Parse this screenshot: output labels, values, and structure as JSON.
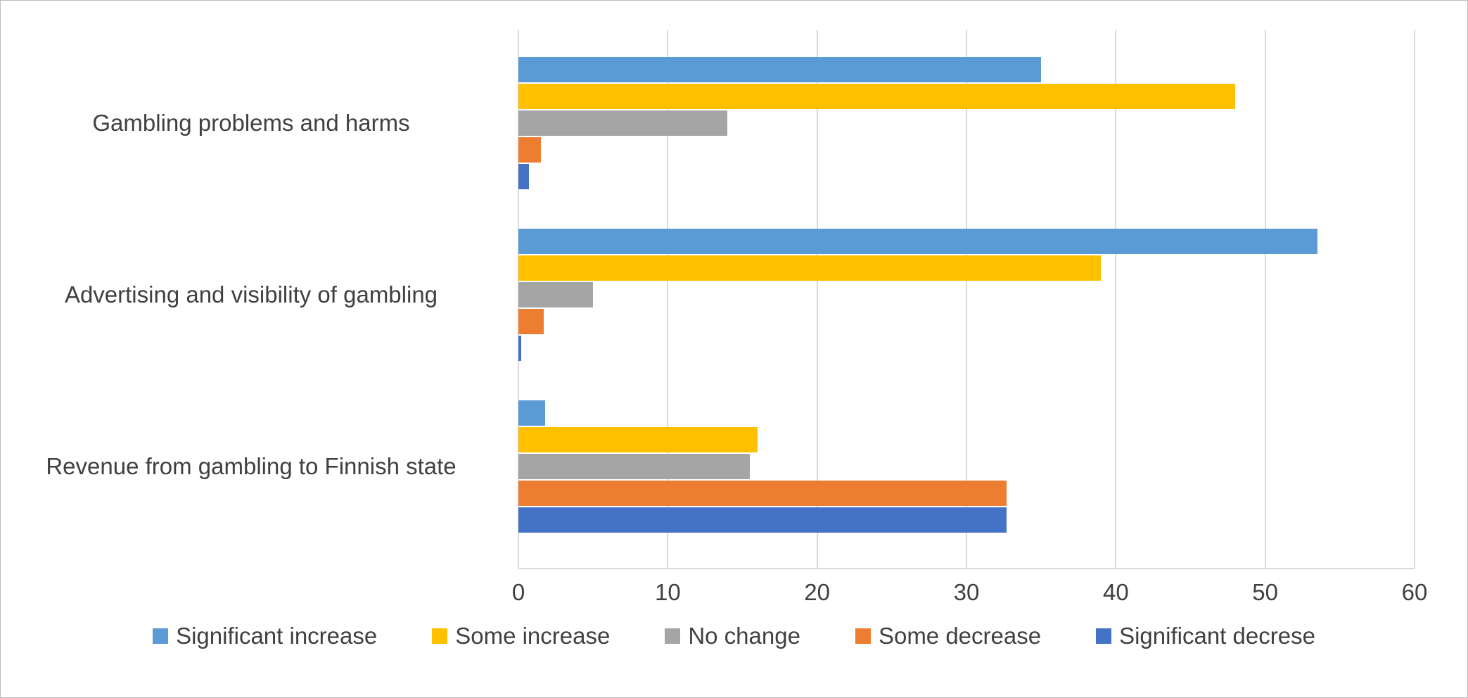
{
  "chart_data": {
    "type": "bar",
    "orientation": "horizontal",
    "title": "",
    "categories": [
      "Gambling problems and harms",
      "Advertising and visibility of gambling",
      "Revenue from gambling to Finnish state"
    ],
    "series": [
      {
        "name": "Significant increase",
        "color": "#5B9BD5",
        "values": [
          35,
          53.5,
          1.8
        ]
      },
      {
        "name": "Some increase",
        "color": "#FFC000",
        "values": [
          48,
          39,
          16
        ]
      },
      {
        "name": "No change",
        "color": "#A5A5A5",
        "values": [
          14,
          5,
          15.5
        ]
      },
      {
        "name": "Some decrease",
        "color": "#ED7D31",
        "values": [
          1.5,
          1.7,
          32.7
        ]
      },
      {
        "name": "Significant decrese",
        "color": "#4472C4",
        "values": [
          0.7,
          0.2,
          32.7
        ]
      }
    ],
    "xlabel": "",
    "ylabel": "",
    "xlim": [
      0,
      60
    ],
    "xticks": [
      0,
      10,
      20,
      30,
      40,
      50,
      60
    ],
    "grid": true,
    "grid_color": "#D9D9D9",
    "axis_line_color": "#D9D9D9",
    "text_color": "#404040",
    "legend_position": "bottom"
  }
}
